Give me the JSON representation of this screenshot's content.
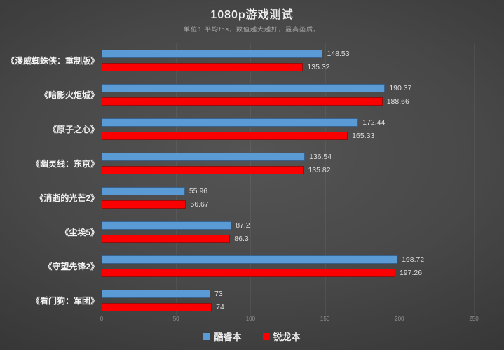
{
  "title": "1080p游戏测试",
  "subtitle": "单位：平均fps，数值越大越好，最高画质。",
  "colors": {
    "blue": "#5B9BD5",
    "blue_border": "#38618B",
    "red": "#FB0000",
    "red_border": "#8F0E0E"
  },
  "legend": {
    "items": [
      {
        "label": "酷睿本",
        "color": "#5B9BD5"
      },
      {
        "label": "锐龙本",
        "color": "#FB0000"
      }
    ]
  },
  "chart_data": {
    "type": "bar",
    "orientation": "horizontal",
    "title": "1080p游戏测试",
    "subtitle": "单位：平均fps，数值越大越好，最高画质。",
    "categories": [
      "《漫威蜘蛛侠：重制版》",
      "《暗影火炬城》",
      "《原子之心》",
      "《幽灵线：东京》",
      "《消逝的光芒2》",
      "《尘埃5》",
      "《守望先锋2》",
      "《看门狗：军团》"
    ],
    "series": [
      {
        "name": "酷睿本",
        "color": "#5B9BD5",
        "border": "#38618B",
        "values": [
          148.53,
          190.37,
          172.44,
          136.54,
          55.96,
          87.2,
          198.72,
          73
        ]
      },
      {
        "name": "锐龙本",
        "color": "#FB0000",
        "border": "#8F0E0E",
        "values": [
          135.32,
          188.66,
          165.33,
          135.82,
          56.67,
          86.3,
          197.26,
          74
        ]
      }
    ],
    "xlim": [
      0,
      250
    ],
    "xticks": [
      0,
      50,
      100,
      150,
      200,
      250
    ],
    "grid": true,
    "legend_position": "bottom"
  }
}
